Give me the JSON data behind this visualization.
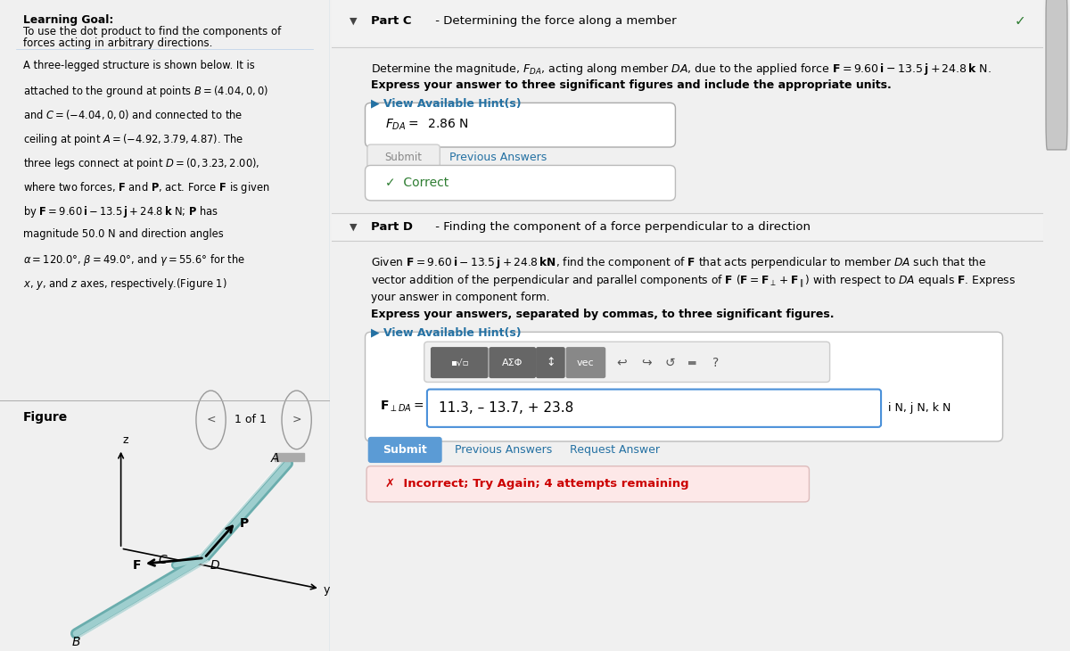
{
  "left_panel_bg": "#d6eaf8",
  "right_panel_bg": "#ffffff",
  "overall_bg": "#f0f0f0",
  "learning_goal_title": "Learning Goal:",
  "learning_goal_text1": "To use the dot product to find the components of",
  "learning_goal_text2": "forces acting in arbitrary directions.",
  "problem_text_lines": [
    "A three-legged structure is shown below. It is",
    "attached to the ground at points $B = (4.04 , 0, 0)$",
    "and $C = (-4.04 , 0, 0)$ and connected to the",
    "ceiling at point $A = (-4.92 , 3.79 , 4.87)$. The",
    "three legs connect at point $D = (0, 3.23, 2.00)$,",
    "where two forces, $\\mathbf{F}$ and $\\mathbf{P}$, act. Force $\\mathbf{F}$ is given",
    "by $\\mathbf{F} = 9.60\\,\\mathbf{i} - 13.5\\,\\mathbf{j} + 24.8\\,\\mathbf{k}$ N; $\\mathbf{P}$ has",
    "magnitude 50.0 N and direction angles",
    "$\\alpha = 120.0°$, $\\beta = 49.0°$, and $\\gamma = 55.6°$ for the",
    "$x$, $y$, and $z$ axes, respectively.(Figure 1)"
  ],
  "figure_label": "Figure",
  "figure_nav": "1 of 1",
  "part_c_header_bold": "Part C",
  "part_c_header_rest": " - Determining the force along a member",
  "part_c_desc1": "Determine the magnitude, $F_{DA}$, acting along member $DA$, due to the applied force $\\mathbf{F} = 9.60\\,\\mathbf{i} - 13.5\\,\\mathbf{j} + 24.8\\,\\mathbf{k}$ N.",
  "part_c_desc2": "Express your answer to three significant figures and include the appropriate units.",
  "part_c_hint": "▶ View Available Hint(s)",
  "part_c_answer": "$F_{DA} =\\;$ 2.86 N",
  "part_c_submit": "Submit",
  "part_c_prev": "Previous Answers",
  "part_c_correct": "✓  Correct",
  "part_d_header_bold": "Part D",
  "part_d_header_rest": " - Finding the component of a force perpendicular to a direction",
  "part_d_line1": "Given $\\mathbf{F} = 9.60\\,\\mathbf{i} - 13.5\\,\\mathbf{j} + 24.8\\,\\mathbf{kN}$, find the component of $\\mathbf{F}$ that acts perpendicular to member $DA$ such that the",
  "part_d_line2": "vector addition of the perpendicular and parallel components of $\\mathbf{F}$ ($\\mathbf{F} = \\mathbf{F}_{\\perp} + \\mathbf{F}_{\\parallel}$) with respect to $DA$ equals $\\mathbf{F}$. Express",
  "part_d_line3": "your answer in component form.",
  "part_d_express": "Express your answers, separated by commas, to three significant figures.",
  "part_d_hint": "▶ View Available Hint(s)",
  "part_d_answer_label": "$\\mathbf{F}_{\\perp DA} =$",
  "part_d_answer_value": "11.3, – 13.7, + 23.8",
  "part_d_units": "i N, j N, k N",
  "part_d_submit": "Submit",
  "part_d_prev": "Previous Answers",
  "part_d_req_answer": "Request Answer",
  "part_d_incorrect": "✗  Incorrect; Try Again; 4 attempts remaining",
  "checkmark": "✓",
  "hint_color": "#2471a3",
  "incorrect_bg": "#fde8e8",
  "incorrect_color": "#cc0000",
  "submit_bg": "#5b9bd5",
  "correct_color": "#2e7d32",
  "panel_separator": "#cccccc",
  "scrollbar_bg": "#c8c8c8",
  "scrollbar_track": "#e8e8e8"
}
